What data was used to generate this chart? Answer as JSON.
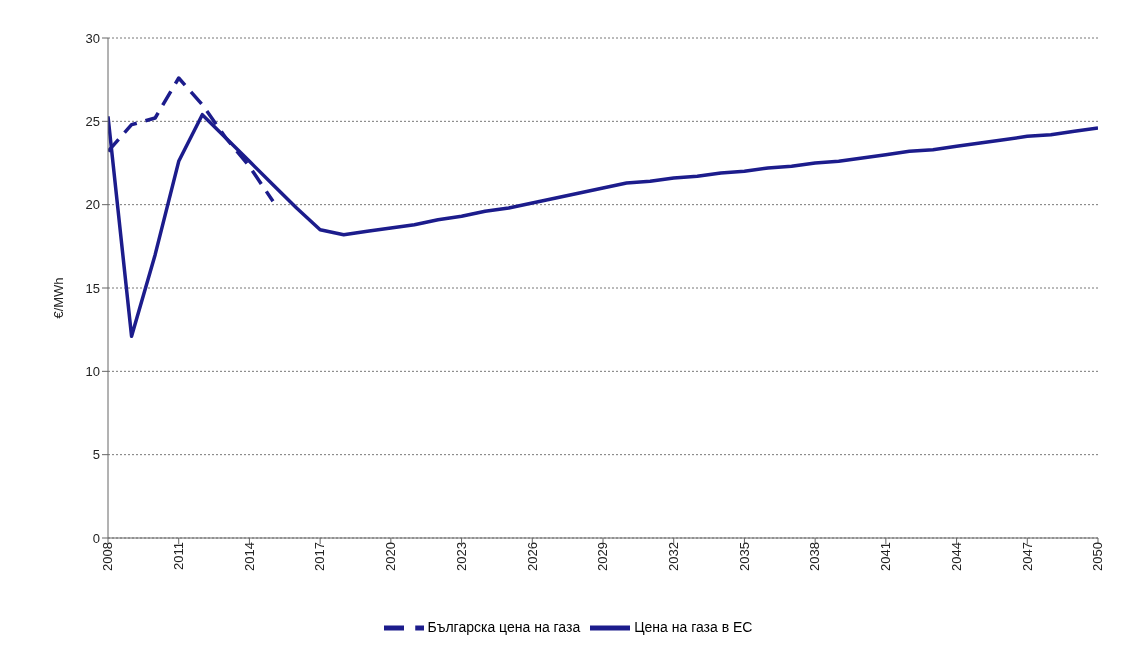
{
  "chart_data": {
    "type": "line",
    "ylabel": "€/MWh",
    "xlim": [
      2008,
      2050
    ],
    "xticks": [
      2008,
      2011,
      2014,
      2017,
      2020,
      2023,
      2026,
      2029,
      2032,
      2035,
      2038,
      2041,
      2044,
      2047,
      2050
    ],
    "ylim": [
      0,
      30
    ],
    "yticks": [
      0,
      5,
      10,
      15,
      20,
      25,
      30
    ],
    "grid": "y",
    "legend": "bottom",
    "marker": "none",
    "series": [
      {
        "name": "Цена на газа в ЕС",
        "color": "#1c1c8c",
        "line_style": "solid",
        "x": [
          2008,
          2009,
          2010,
          2011,
          2012,
          2013,
          2014,
          2015,
          2016,
          2017,
          2018,
          2019,
          2020,
          2021,
          2022,
          2023,
          2024,
          2025,
          2026,
          2027,
          2028,
          2029,
          2030,
          2031,
          2032,
          2033,
          2034,
          2035,
          2036,
          2037,
          2038,
          2039,
          2040,
          2041,
          2042,
          2043,
          2044,
          2045,
          2046,
          2047,
          2048,
          2049,
          2050
        ],
        "values": [
          25.3,
          12.1,
          17,
          22.6,
          25.4,
          24,
          22.6,
          21.2,
          19.8,
          18.5,
          18.2,
          18.4,
          18.6,
          18.8,
          19.1,
          19.3,
          19.6,
          19.8,
          20.1,
          20.4,
          20.7,
          21,
          21.3,
          21.4,
          21.6,
          21.7,
          21.9,
          22,
          22.2,
          22.3,
          22.5,
          22.6,
          22.8,
          23,
          23.2,
          23.3,
          23.5,
          23.7,
          23.9,
          24.1,
          24.2,
          24.4,
          24.6
        ]
      },
      {
        "name": "Българска цена на газа",
        "color": "#1c1c8c",
        "line_style": "dashed",
        "x": [
          2008,
          2009,
          2010,
          2011,
          2012,
          2013,
          2014,
          2015
        ],
        "values": [
          23.2,
          24.8,
          25.2,
          27.6,
          26,
          24,
          22.3,
          20.2
        ]
      }
    ]
  }
}
